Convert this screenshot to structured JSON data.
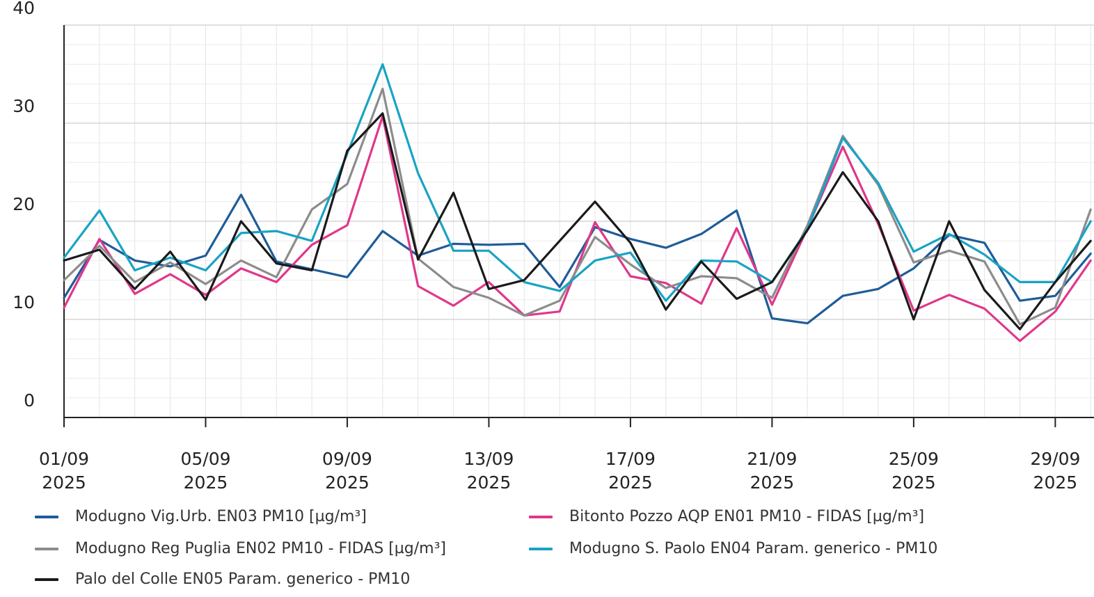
{
  "chart_data": {
    "type": "line",
    "x": [
      "01/09/2025",
      "02/09/2025",
      "03/09/2025",
      "04/09/2025",
      "05/09/2025",
      "06/09/2025",
      "07/09/2025",
      "08/09/2025",
      "09/09/2025",
      "10/09/2025",
      "11/09/2025",
      "12/09/2025",
      "13/09/2025",
      "14/09/2025",
      "15/09/2025",
      "16/09/2025",
      "17/09/2025",
      "18/09/2025",
      "19/09/2025",
      "20/09/2025",
      "21/09/2025",
      "22/09/2025",
      "23/09/2025",
      "24/09/2025",
      "25/09/2025",
      "26/09/2025",
      "27/09/2025",
      "28/09/2025",
      "29/09/2025",
      "30/09/2025"
    ],
    "x_ticks": [
      {
        "day": "01/09",
        "year": "2025",
        "index": 0
      },
      {
        "day": "05/09",
        "year": "2025",
        "index": 4
      },
      {
        "day": "09/09",
        "year": "2025",
        "index": 8
      },
      {
        "day": "13/09",
        "year": "2025",
        "index": 12
      },
      {
        "day": "17/09",
        "year": "2025",
        "index": 16
      },
      {
        "day": "21/09",
        "year": "2025",
        "index": 20
      },
      {
        "day": "25/09",
        "year": "2025",
        "index": 24
      },
      {
        "day": "29/09",
        "year": "2025",
        "index": 28
      }
    ],
    "ylim": [
      0,
      40
    ],
    "y_ticks": [
      "0",
      "10",
      "20",
      "30",
      "40"
    ],
    "grid": true,
    "legend_position": "bottom",
    "series": [
      {
        "name": "Modugno Vig.Urb. EN03 PM10 [µg/m³]",
        "color": "#1f5c99",
        "values": [
          12.2,
          18.1,
          16.0,
          15.4,
          16.5,
          22.7,
          15.9,
          15.1,
          14.3,
          19.0,
          16.5,
          17.7,
          17.6,
          17.7,
          13.3,
          19.4,
          18.2,
          17.3,
          18.7,
          21.1,
          10.1,
          9.6,
          12.4,
          13.1,
          15.2,
          18.6,
          17.8,
          11.9,
          12.4,
          16.7
        ]
      },
      {
        "name": "Bitonto Pozzo AQP EN01 PM10 - FIDAS [µg/m³]",
        "color": "#e0378a",
        "values": [
          11.2,
          18.2,
          12.6,
          14.6,
          12.5,
          15.2,
          13.8,
          17.6,
          19.6,
          30.7,
          13.4,
          11.4,
          13.8,
          10.4,
          10.8,
          19.9,
          14.4,
          13.7,
          11.6,
          19.3,
          11.5,
          19.3,
          27.6,
          19.7,
          10.9,
          12.5,
          11.1,
          7.8,
          10.8,
          16.0
        ]
      },
      {
        "name": "Modugno Reg Puglia EN02 PM10 - FIDAS [µg/m³]",
        "color": "#8c8c8c",
        "values": [
          14.0,
          17.5,
          13.8,
          15.8,
          13.6,
          16.0,
          14.3,
          21.2,
          23.8,
          33.5,
          16.2,
          13.3,
          12.2,
          10.4,
          11.9,
          18.4,
          15.6,
          13.2,
          14.4,
          14.2,
          12.2,
          19.6,
          28.7,
          23.7,
          15.8,
          17.0,
          15.9,
          9.5,
          11.2,
          21.2
        ]
      },
      {
        "name": "Modugno S. Paolo EN04 Param. generico - PM10",
        "color": "#19a3c4",
        "values": [
          16.3,
          21.1,
          15.0,
          16.3,
          15.0,
          18.8,
          19.0,
          18.0,
          26.9,
          36.0,
          24.9,
          17.0,
          17.0,
          13.8,
          12.9,
          16.0,
          16.8,
          11.9,
          16.0,
          15.9,
          13.8,
          19.2,
          28.5,
          23.9,
          16.9,
          18.7,
          16.6,
          13.8,
          13.8,
          20.0
        ]
      },
      {
        "name": "Palo del Colle EN05 Param. generico - PM10",
        "color": "#1a1a1a",
        "values": [
          16.0,
          17.1,
          13.1,
          16.9,
          12.0,
          20.0,
          15.7,
          15.0,
          27.2,
          31.0,
          16.1,
          22.9,
          13.1,
          14.0,
          18.0,
          22.0,
          17.8,
          11.0,
          15.9,
          12.1,
          13.8,
          19.1,
          25.0,
          20.0,
          10.0,
          20.0,
          13.0,
          9.0,
          13.8,
          18.0
        ]
      }
    ]
  }
}
